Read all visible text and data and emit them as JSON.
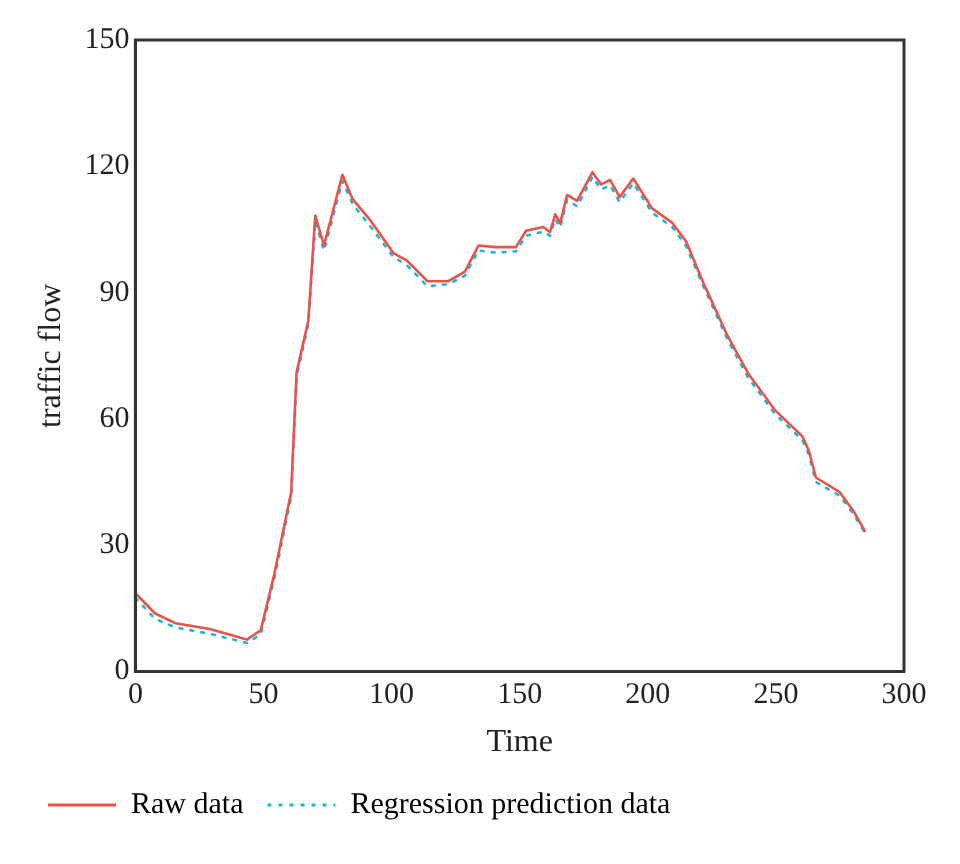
{
  "chart_data": {
    "type": "line",
    "xlabel": "Time",
    "ylabel": "traffic flow",
    "xlim": [
      0,
      300
    ],
    "xticks": [
      0,
      50,
      100,
      150,
      200,
      250,
      300
    ],
    "ylim": [
      0,
      150
    ],
    "yticks": [
      0,
      30,
      60,
      90,
      120,
      150
    ],
    "grid": false,
    "legend": "bottom",
    "marker": "none",
    "series": [
      {
        "name": "Raw data",
        "color": "#e8534a",
        "line_style": "solid",
        "x": [
          0,
          7.7,
          15.6,
          29,
          43.5,
          48.9,
          54.2,
          60.8,
          62.9,
          67.5,
          70.2,
          73.6,
          80.8,
          84.8,
          91.4,
          100.7,
          106,
          114,
          122,
          128.6,
          133.9,
          140.6,
          148.5,
          152.5,
          159.2,
          161.8,
          163.9,
          165.8,
          168.5,
          172.4,
          178.4,
          181.8,
          185.3,
          189,
          194.3,
          201.7,
          209.7,
          215,
          221.7,
          231,
          239,
          249.6,
          260.3,
          262.9,
          265.6,
          274.9,
          280.2,
          284.7
        ],
        "values": [
          18.6,
          13.8,
          11.5,
          10.1,
          7.6,
          9.8,
          23.1,
          42.6,
          71,
          83.4,
          108.3,
          101.2,
          118,
          112.2,
          107.4,
          99.4,
          97.6,
          92.7,
          92.7,
          95,
          101.2,
          100.8,
          100.8,
          104.7,
          105.6,
          104.4,
          108.6,
          106.5,
          113.2,
          111.8,
          118.6,
          115.7,
          116.8,
          112.7,
          117.1,
          110,
          106.5,
          102.1,
          92.3,
          79.9,
          71,
          62.1,
          55.9,
          52.4,
          46.1,
          42.6,
          38.2,
          33.4
        ]
      },
      {
        "name": "Regression prediction data",
        "color": "#1fb5d6",
        "line_style": "dotted",
        "x": [
          0,
          7.7,
          15.6,
          29,
          43.5,
          48.9,
          54.2,
          60.8,
          62.9,
          67.5,
          70.2,
          73.6,
          80.8,
          84.8,
          91.4,
          100.7,
          106,
          114,
          122,
          128.6,
          133.9,
          140.6,
          148.5,
          152.5,
          159.2,
          161.8,
          163.9,
          165.8,
          168.5,
          172.4,
          178.4,
          181.8,
          185.3,
          189,
          194.3,
          201.7,
          209.7,
          215,
          221.7,
          231,
          239,
          249.6,
          260.3,
          262.9,
          265.6,
          274.9,
          280.2,
          284.7
        ],
        "values": [
          17.5,
          12.5,
          10.5,
          9,
          6.8,
          8.8,
          22,
          41.5,
          70,
          82.5,
          107,
          100,
          116.5,
          111,
          106,
          98.5,
          96.5,
          91.5,
          92,
          94,
          100,
          99.5,
          99.8,
          103.5,
          104.5,
          103.5,
          107.5,
          105.5,
          112,
          110.5,
          117.5,
          114.5,
          115.5,
          111.5,
          116,
          109,
          105.5,
          101,
          91.5,
          79,
          70,
          61.2,
          55,
          51.5,
          45,
          41.8,
          37.5,
          33
        ]
      }
    ]
  }
}
